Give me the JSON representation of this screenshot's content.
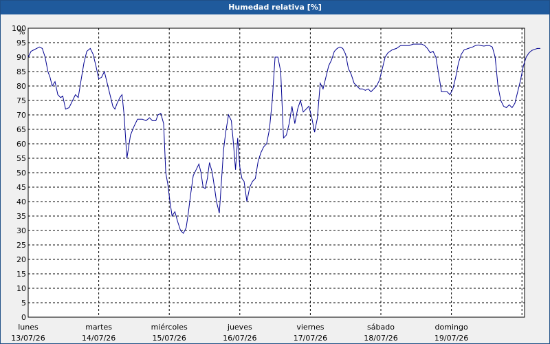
{
  "window": {
    "title": "Humedad relativa [%]"
  },
  "colors": {
    "title_bar": "#1f5a9c",
    "series": "#000090",
    "plot_bg": "#ffffff",
    "window_bg": "#f0f0f0"
  },
  "chart_data": {
    "type": "line",
    "title": "Humedad relativa [%]",
    "ylabel": "%",
    "xlabel": "",
    "ylim": [
      0,
      100
    ],
    "xlim": [
      0,
      7
    ],
    "grid": true,
    "y_ticks": [
      "0",
      "5",
      "10",
      "15",
      "20",
      "25",
      "30",
      "35",
      "40",
      "45",
      "50",
      "55",
      "60",
      "65",
      "70",
      "75",
      "80",
      "85",
      "90",
      "95",
      "100"
    ],
    "x_ticks": [
      {
        "day": "lunes",
        "date": "13/07/26"
      },
      {
        "day": "martes",
        "date": "14/07/26"
      },
      {
        "day": "miércoles",
        "date": "15/07/26"
      },
      {
        "day": "jueves",
        "date": "16/07/26"
      },
      {
        "day": "viernes",
        "date": "17/07/26"
      },
      {
        "day": "sábado",
        "date": "18/07/26"
      },
      {
        "day": "domingo",
        "date": "19/07/26"
      }
    ],
    "series": [
      {
        "points": [
          [
            0.0,
            90
          ],
          [
            0.04,
            92
          ],
          [
            0.08,
            92.5
          ],
          [
            0.12,
            93
          ],
          [
            0.16,
            93.5
          ],
          [
            0.2,
            93
          ],
          [
            0.24,
            90
          ],
          [
            0.28,
            85
          ],
          [
            0.31,
            83
          ],
          [
            0.34,
            80
          ],
          [
            0.38,
            81.5
          ],
          [
            0.42,
            77
          ],
          [
            0.46,
            76
          ],
          [
            0.49,
            76.5
          ],
          [
            0.53,
            72
          ],
          [
            0.58,
            72.5
          ],
          [
            0.63,
            75
          ],
          [
            0.67,
            77
          ],
          [
            0.71,
            76
          ],
          [
            0.75,
            82
          ],
          [
            0.79,
            88
          ],
          [
            0.83,
            92
          ],
          [
            0.88,
            93
          ],
          [
            0.92,
            91
          ],
          [
            0.96,
            87
          ],
          [
            1.0,
            82.5
          ],
          [
            1.04,
            83
          ],
          [
            1.08,
            85
          ],
          [
            1.12,
            81
          ],
          [
            1.16,
            77
          ],
          [
            1.2,
            73
          ],
          [
            1.23,
            72
          ],
          [
            1.26,
            74
          ],
          [
            1.3,
            76
          ],
          [
            1.33,
            77
          ],
          [
            1.36,
            70
          ],
          [
            1.4,
            55
          ],
          [
            1.45,
            63
          ],
          [
            1.5,
            66
          ],
          [
            1.55,
            68.5
          ],
          [
            1.62,
            68.5
          ],
          [
            1.67,
            68
          ],
          [
            1.72,
            69
          ],
          [
            1.76,
            68
          ],
          [
            1.81,
            68
          ],
          [
            1.84,
            70
          ],
          [
            1.88,
            70.5
          ],
          [
            1.92,
            67
          ],
          [
            1.95,
            50
          ],
          [
            1.98,
            46
          ],
          [
            2.01,
            40
          ],
          [
            2.04,
            35
          ],
          [
            2.08,
            36.5
          ],
          [
            2.12,
            33
          ],
          [
            2.16,
            30
          ],
          [
            2.2,
            29
          ],
          [
            2.24,
            31
          ],
          [
            2.27,
            36
          ],
          [
            2.3,
            42
          ],
          [
            2.34,
            49
          ],
          [
            2.38,
            51
          ],
          [
            2.42,
            53
          ],
          [
            2.45,
            50
          ],
          [
            2.48,
            45
          ],
          [
            2.51,
            44.5
          ],
          [
            2.54,
            48
          ],
          [
            2.57,
            53.5
          ],
          [
            2.61,
            50
          ],
          [
            2.64,
            45
          ],
          [
            2.67,
            40
          ],
          [
            2.71,
            36
          ],
          [
            2.74,
            47
          ],
          [
            2.77,
            58
          ],
          [
            2.8,
            64
          ],
          [
            2.84,
            70
          ],
          [
            2.88,
            68
          ],
          [
            2.91,
            60
          ],
          [
            2.94,
            51
          ],
          [
            2.97,
            62
          ],
          [
            3.0,
            52
          ],
          [
            3.03,
            48
          ],
          [
            3.06,
            47
          ],
          [
            3.1,
            40
          ],
          [
            3.14,
            45
          ],
          [
            3.18,
            47
          ],
          [
            3.22,
            48
          ],
          [
            3.26,
            54
          ],
          [
            3.3,
            57
          ],
          [
            3.34,
            59
          ],
          [
            3.38,
            60
          ],
          [
            3.42,
            65
          ],
          [
            3.46,
            75
          ],
          [
            3.5,
            90
          ],
          [
            3.54,
            90
          ],
          [
            3.58,
            85
          ],
          [
            3.62,
            62
          ],
          [
            3.66,
            63
          ],
          [
            3.7,
            67
          ],
          [
            3.74,
            73
          ],
          [
            3.78,
            67
          ],
          [
            3.82,
            72
          ],
          [
            3.86,
            75
          ],
          [
            3.9,
            71
          ],
          [
            3.94,
            72
          ],
          [
            3.98,
            73
          ],
          [
            4.02,
            69
          ],
          [
            4.06,
            64
          ],
          [
            4.1,
            69
          ],
          [
            4.14,
            81
          ],
          [
            4.18,
            79
          ],
          [
            4.22,
            83
          ],
          [
            4.26,
            87
          ],
          [
            4.3,
            89
          ],
          [
            4.34,
            92
          ],
          [
            4.38,
            93
          ],
          [
            4.42,
            93.5
          ],
          [
            4.46,
            93
          ],
          [
            4.5,
            91
          ],
          [
            4.54,
            86
          ],
          [
            4.58,
            84
          ],
          [
            4.62,
            81
          ],
          [
            4.66,
            80
          ],
          [
            4.7,
            79
          ],
          [
            4.74,
            79
          ],
          [
            4.78,
            78.5
          ],
          [
            4.82,
            79
          ],
          [
            4.86,
            78
          ],
          [
            4.9,
            79
          ],
          [
            4.94,
            80
          ],
          [
            4.98,
            82
          ],
          [
            5.02,
            86
          ],
          [
            5.06,
            90
          ],
          [
            5.1,
            91.5
          ],
          [
            5.16,
            92.5
          ],
          [
            5.22,
            93
          ],
          [
            5.28,
            94
          ],
          [
            5.34,
            94
          ],
          [
            5.4,
            94
          ],
          [
            5.46,
            94.5
          ],
          [
            5.52,
            94.5
          ],
          [
            5.58,
            94.5
          ],
          [
            5.62,
            94
          ],
          [
            5.66,
            93
          ],
          [
            5.7,
            91.5
          ],
          [
            5.74,
            92
          ],
          [
            5.78,
            90
          ],
          [
            5.82,
            84
          ],
          [
            5.86,
            78
          ],
          [
            5.9,
            78
          ],
          [
            5.94,
            78
          ],
          [
            5.98,
            77
          ],
          [
            6.02,
            79
          ],
          [
            6.06,
            83
          ],
          [
            6.1,
            88
          ],
          [
            6.14,
            91
          ],
          [
            6.18,
            92.5
          ],
          [
            6.24,
            93
          ],
          [
            6.3,
            93.5
          ],
          [
            6.34,
            94
          ],
          [
            6.38,
            94.2
          ],
          [
            6.42,
            94
          ],
          [
            6.46,
            93.8
          ],
          [
            6.5,
            94
          ],
          [
            6.54,
            94
          ],
          [
            6.58,
            93.5
          ],
          [
            6.62,
            90
          ],
          [
            6.66,
            80
          ],
          [
            6.7,
            75
          ],
          [
            6.74,
            73
          ],
          [
            6.78,
            72.5
          ],
          [
            6.82,
            73.5
          ],
          [
            6.86,
            72.5
          ],
          [
            6.9,
            74
          ],
          [
            6.94,
            78
          ],
          [
            6.98,
            82
          ],
          [
            7.02,
            87
          ],
          [
            7.06,
            90
          ],
          [
            7.1,
            91.5
          ],
          [
            7.14,
            92.3
          ],
          [
            7.18,
            92.7
          ],
          [
            7.22,
            93
          ],
          [
            7.26,
            93
          ]
        ]
      }
    ]
  }
}
